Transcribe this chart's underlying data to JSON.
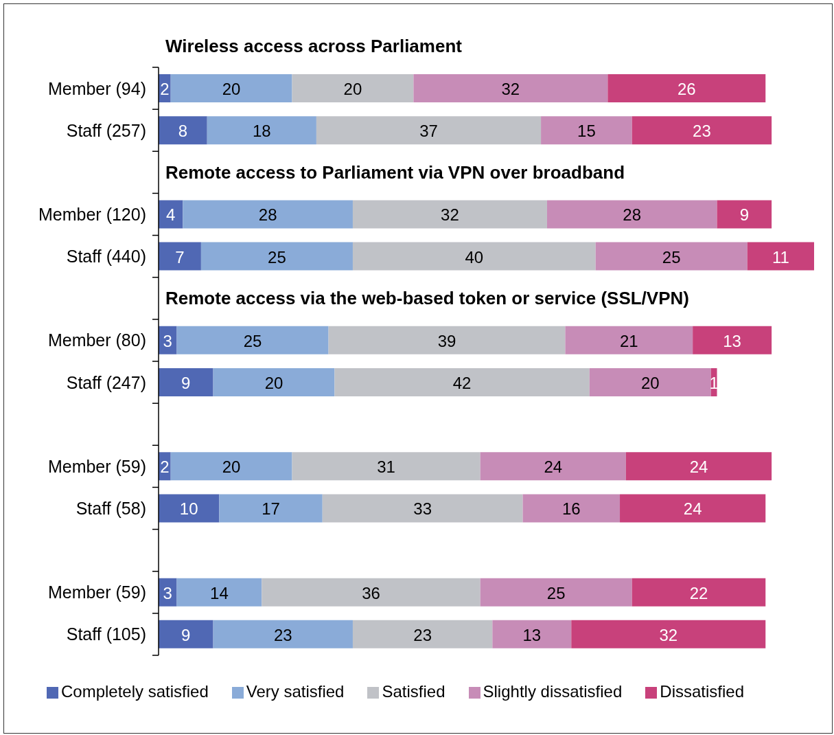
{
  "chart_data": {
    "type": "bar",
    "orientation": "horizontal",
    "stacked": true,
    "categories": [
      "Member (94)",
      "Staff (257)",
      null,
      "Member (120)",
      "Staff (440)",
      null,
      "Member (80)",
      "Staff (247)",
      null,
      "Member (59)",
      "Staff (58)",
      null,
      "Member (59)",
      "Staff (105)"
    ],
    "series": [
      {
        "name": "Completely satisfied",
        "color": "#5068b4",
        "values": [
          2,
          8,
          null,
          4,
          7,
          null,
          3,
          9,
          null,
          2,
          10,
          null,
          3,
          9
        ]
      },
      {
        "name": "Very satisfied",
        "color": "#8aabd8",
        "values": [
          20,
          18,
          null,
          28,
          25,
          null,
          25,
          20,
          null,
          20,
          17,
          null,
          14,
          23
        ]
      },
      {
        "name": "Satisfied",
        "color": "#c0c2c7",
        "values": [
          20,
          37,
          null,
          32,
          40,
          null,
          39,
          42,
          null,
          31,
          33,
          null,
          36,
          23
        ]
      },
      {
        "name": "Slightly dissatisfied",
        "color": "#c78cb7",
        "values": [
          32,
          15,
          null,
          28,
          25,
          null,
          21,
          20,
          null,
          24,
          16,
          null,
          25,
          13
        ]
      },
      {
        "name": "Dissatisfied",
        "color": "#c8417b",
        "values": [
          26,
          23,
          null,
          9,
          11,
          null,
          13,
          1,
          null,
          24,
          24,
          null,
          22,
          32
        ]
      }
    ],
    "annotations": [
      "Wireless access across Parliament",
      "Remote access to Parliament via VPN over broadband",
      "Remote access via the web-based token or service (SSL/VPN)"
    ],
    "data_labels": true,
    "legend": "bottom",
    "tick_labels": "y"
  }
}
